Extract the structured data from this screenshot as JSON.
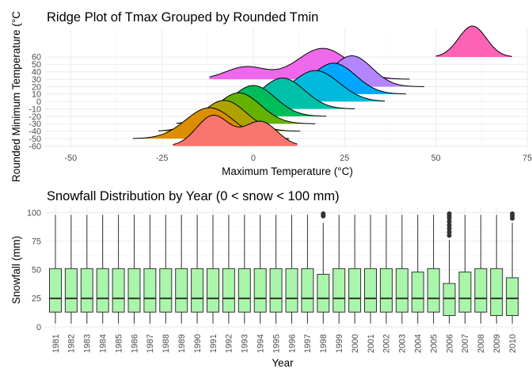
{
  "chart_data": [
    {
      "type": "ridgeline",
      "title": "Ridge Plot of Tmax Grouped by Rounded Tmin",
      "xlabel": "Maximum Temperature (°C)",
      "ylabel": "Rounded Minimum Temperature (°C",
      "xlim": [
        -57,
        75
      ],
      "x_ticks": [
        -50,
        -25,
        0,
        25,
        50,
        75
      ],
      "y_ticks": [
        -60,
        -50,
        -40,
        -30,
        -20,
        -10,
        0,
        10,
        20,
        30,
        40,
        50,
        60
      ],
      "grid": true,
      "legend": "none",
      "ridges": [
        {
          "tmin": -60,
          "color": "#F8766D",
          "range": [
            -22,
            12
          ],
          "peaks": [
            {
              "mu": -11,
              "sd": 4.5,
              "h": 1.0
            },
            {
              "mu": 2,
              "sd": 4.5,
              "h": 0.8
            }
          ]
        },
        {
          "tmin": -50,
          "color": "#DB8E00",
          "range": [
            -33,
            10
          ],
          "peaks": [
            {
              "mu": -12,
              "sd": 6.5,
              "h": 1.0
            }
          ]
        },
        {
          "tmin": -40,
          "color": "#AEA200",
          "range": [
            -26,
            13
          ],
          "peaks": [
            {
              "mu": -8,
              "sd": 6.0,
              "h": 1.0
            }
          ]
        },
        {
          "tmin": -30,
          "color": "#64B200",
          "range": [
            -21,
            17
          ],
          "peaks": [
            {
              "mu": -4,
              "sd": 6.0,
              "h": 1.0
            }
          ]
        },
        {
          "tmin": -20,
          "color": "#00BD5C",
          "range": [
            -16,
            20
          ],
          "peaks": [
            {
              "mu": 0,
              "sd": 6.0,
              "h": 1.0
            }
          ]
        },
        {
          "tmin": -10,
          "color": "#00C1A7",
          "range": [
            -7,
            28
          ],
          "peaks": [
            {
              "mu": 8,
              "sd": 6.0,
              "h": 1.0
            }
          ]
        },
        {
          "tmin": 0,
          "color": "#00BADE",
          "range": [
            4,
            36
          ],
          "peaks": [
            {
              "mu": 17,
              "sd": 6.5,
              "h": 1.0
            }
          ]
        },
        {
          "tmin": 10,
          "color": "#00A6FF",
          "range": [
            5,
            42
          ],
          "peaks": [
            {
              "mu": 22,
              "sd": 6.0,
              "h": 1.0
            }
          ]
        },
        {
          "tmin": 20,
          "color": "#B385FF",
          "range": [
            10,
            47
          ],
          "peaks": [
            {
              "mu": 27,
              "sd": 5.5,
              "h": 1.0
            }
          ]
        },
        {
          "tmin": 30,
          "color": "#EF67EB",
          "range": [
            -12,
            43
          ],
          "peaks": [
            {
              "mu": -2,
              "sd": 5.5,
              "h": 0.4
            },
            {
              "mu": 19,
              "sd": 7.0,
              "h": 1.0
            }
          ]
        },
        {
          "tmin": 60,
          "color": "#FF63B6",
          "range": [
            50,
            71
          ],
          "peaks": [
            {
              "mu": 60,
              "sd": 3.8,
              "h": 1.0
            }
          ]
        }
      ]
    },
    {
      "type": "boxplot",
      "title": "Snowfall Distribution by Year (0 < snow < 100 mm)",
      "xlabel": "Year",
      "ylabel": "Snowfall (mm)",
      "ylim": [
        0,
        100
      ],
      "y_ticks": [
        0,
        25,
        50,
        75,
        100
      ],
      "fill_color": "#A9F5A9",
      "grid": true,
      "categories": [
        "1981",
        "1982",
        "1983",
        "1984",
        "1985",
        "1986",
        "1987",
        "1988",
        "1989",
        "1990",
        "1991",
        "1992",
        "1993",
        "1994",
        "1995",
        "1996",
        "1997",
        "1998",
        "1999",
        "2000",
        "2001",
        "2002",
        "2003",
        "2004",
        "2005",
        "2006",
        "2007",
        "2008",
        "2009",
        "2010"
      ],
      "series": [
        {
          "year": "1981",
          "q1": 13,
          "median": 25,
          "q3": 51,
          "whisker_low": 3,
          "whisker_high": 98,
          "outliers": []
        },
        {
          "year": "1982",
          "q1": 13,
          "median": 25,
          "q3": 51,
          "whisker_low": 3,
          "whisker_high": 98,
          "outliers": []
        },
        {
          "year": "1983",
          "q1": 13,
          "median": 25,
          "q3": 51,
          "whisker_low": 3,
          "whisker_high": 98,
          "outliers": []
        },
        {
          "year": "1984",
          "q1": 13,
          "median": 25,
          "q3": 51,
          "whisker_low": 3,
          "whisker_high": 98,
          "outliers": []
        },
        {
          "year": "1985",
          "q1": 13,
          "median": 25,
          "q3": 51,
          "whisker_low": 3,
          "whisker_high": 98,
          "outliers": []
        },
        {
          "year": "1986",
          "q1": 13,
          "median": 25,
          "q3": 51,
          "whisker_low": 3,
          "whisker_high": 98,
          "outliers": []
        },
        {
          "year": "1987",
          "q1": 13,
          "median": 25,
          "q3": 51,
          "whisker_low": 3,
          "whisker_high": 98,
          "outliers": []
        },
        {
          "year": "1988",
          "q1": 13,
          "median": 25,
          "q3": 51,
          "whisker_low": 3,
          "whisker_high": 98,
          "outliers": []
        },
        {
          "year": "1989",
          "q1": 13,
          "median": 25,
          "q3": 51,
          "whisker_low": 3,
          "whisker_high": 98,
          "outliers": []
        },
        {
          "year": "1990",
          "q1": 13,
          "median": 25,
          "q3": 51,
          "whisker_low": 3,
          "whisker_high": 98,
          "outliers": []
        },
        {
          "year": "1991",
          "q1": 13,
          "median": 25,
          "q3": 51,
          "whisker_low": 3,
          "whisker_high": 98,
          "outliers": []
        },
        {
          "year": "1992",
          "q1": 13,
          "median": 25,
          "q3": 51,
          "whisker_low": 3,
          "whisker_high": 98,
          "outliers": []
        },
        {
          "year": "1993",
          "q1": 13,
          "median": 25,
          "q3": 51,
          "whisker_low": 3,
          "whisker_high": 98,
          "outliers": []
        },
        {
          "year": "1994",
          "q1": 13,
          "median": 25,
          "q3": 51,
          "whisker_low": 3,
          "whisker_high": 98,
          "outliers": []
        },
        {
          "year": "1995",
          "q1": 13,
          "median": 25,
          "q3": 51,
          "whisker_low": 3,
          "whisker_high": 98,
          "outliers": []
        },
        {
          "year": "1996",
          "q1": 13,
          "median": 25,
          "q3": 51,
          "whisker_low": 3,
          "whisker_high": 98,
          "outliers": []
        },
        {
          "year": "1997",
          "q1": 13,
          "median": 25,
          "q3": 51,
          "whisker_low": 3,
          "whisker_high": 98,
          "outliers": []
        },
        {
          "year": "1998",
          "q1": 13,
          "median": 25,
          "q3": 46,
          "whisker_low": 3,
          "whisker_high": 91,
          "outliers": [
            97,
            98,
            99
          ]
        },
        {
          "year": "1999",
          "q1": 13,
          "median": 25,
          "q3": 51,
          "whisker_low": 3,
          "whisker_high": 98,
          "outliers": []
        },
        {
          "year": "2000",
          "q1": 13,
          "median": 25,
          "q3": 51,
          "whisker_low": 3,
          "whisker_high": 98,
          "outliers": []
        },
        {
          "year": "2001",
          "q1": 13,
          "median": 25,
          "q3": 51,
          "whisker_low": 3,
          "whisker_high": 98,
          "outliers": []
        },
        {
          "year": "2002",
          "q1": 13,
          "median": 25,
          "q3": 51,
          "whisker_low": 3,
          "whisker_high": 98,
          "outliers": []
        },
        {
          "year": "2003",
          "q1": 13,
          "median": 25,
          "q3": 51,
          "whisker_low": 3,
          "whisker_high": 98,
          "outliers": []
        },
        {
          "year": "2004",
          "q1": 13,
          "median": 25,
          "q3": 48,
          "whisker_low": 3,
          "whisker_high": 98,
          "outliers": []
        },
        {
          "year": "2005",
          "q1": 13,
          "median": 25,
          "q3": 51,
          "whisker_low": 3,
          "whisker_high": 98,
          "outliers": []
        },
        {
          "year": "2006",
          "q1": 10,
          "median": 25,
          "q3": 38,
          "whisker_low": 3,
          "whisker_high": 76,
          "outliers": [
            80,
            83,
            86,
            89,
            92,
            95,
            97,
            99
          ]
        },
        {
          "year": "2007",
          "q1": 13,
          "median": 25,
          "q3": 48,
          "whisker_low": 3,
          "whisker_high": 98,
          "outliers": []
        },
        {
          "year": "2008",
          "q1": 13,
          "median": 25,
          "q3": 51,
          "whisker_low": 3,
          "whisker_high": 98,
          "outliers": []
        },
        {
          "year": "2009",
          "q1": 10,
          "median": 25,
          "q3": 51,
          "whisker_low": 3,
          "whisker_high": 98,
          "outliers": []
        },
        {
          "year": "2010",
          "q1": 10,
          "median": 25,
          "q3": 43,
          "whisker_low": 3,
          "whisker_high": 91,
          "outliers": [
            95,
            97,
            99
          ]
        }
      ]
    }
  ]
}
